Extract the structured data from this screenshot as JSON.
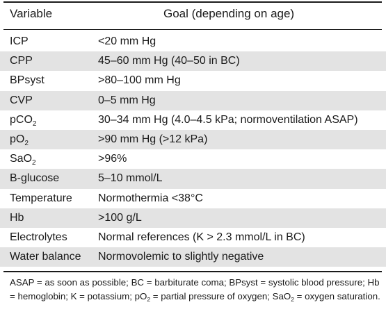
{
  "header": {
    "variable": "Variable",
    "goal": "Goal (depending on age)"
  },
  "rows": [
    {
      "variable": "ICP",
      "sub": "",
      "goal": "<20 mm Hg"
    },
    {
      "variable": "CPP",
      "sub": "",
      "goal": "45–60 mm Hg (40–50 in BC)"
    },
    {
      "variable": "BPsyst",
      "sub": "",
      "goal": ">80–100 mm Hg"
    },
    {
      "variable": "CVP",
      "sub": "",
      "goal": "0–5 mm Hg"
    },
    {
      "variable": "pCO",
      "sub": "2",
      "goal": "30–34 mm Hg (4.0–4.5 kPa; normoventilation ASAP)"
    },
    {
      "variable": "pO",
      "sub": "2",
      "goal": ">90 mm Hg (>12 kPa)"
    },
    {
      "variable": "SaO",
      "sub": "2",
      "goal": ">96%"
    },
    {
      "variable": "B-glucose",
      "sub": "",
      "goal": "5–10 mmol/L"
    },
    {
      "variable": "Temperature",
      "sub": "",
      "goal": "Normothermia <38°C"
    },
    {
      "variable": "Hb",
      "sub": "",
      "goal": ">100 g/L"
    },
    {
      "variable": "Electrolytes",
      "sub": "",
      "goal": "Normal references (K > 2.3 mmol/L in BC)"
    },
    {
      "variable": "Water balance",
      "sub": "",
      "goal": "Normovolemic to slightly negative"
    }
  ],
  "footnote": {
    "part1": "ASAP = as soon as possible; BC = barbiturate coma; BPsyst = systolic blood pressure; Hb = hemoglobin; K = potassium; pO",
    "sub1": "2",
    "part2": " = partial pressure of oxygen; SaO",
    "sub2": "2",
    "part3": " = oxygen saturation."
  }
}
